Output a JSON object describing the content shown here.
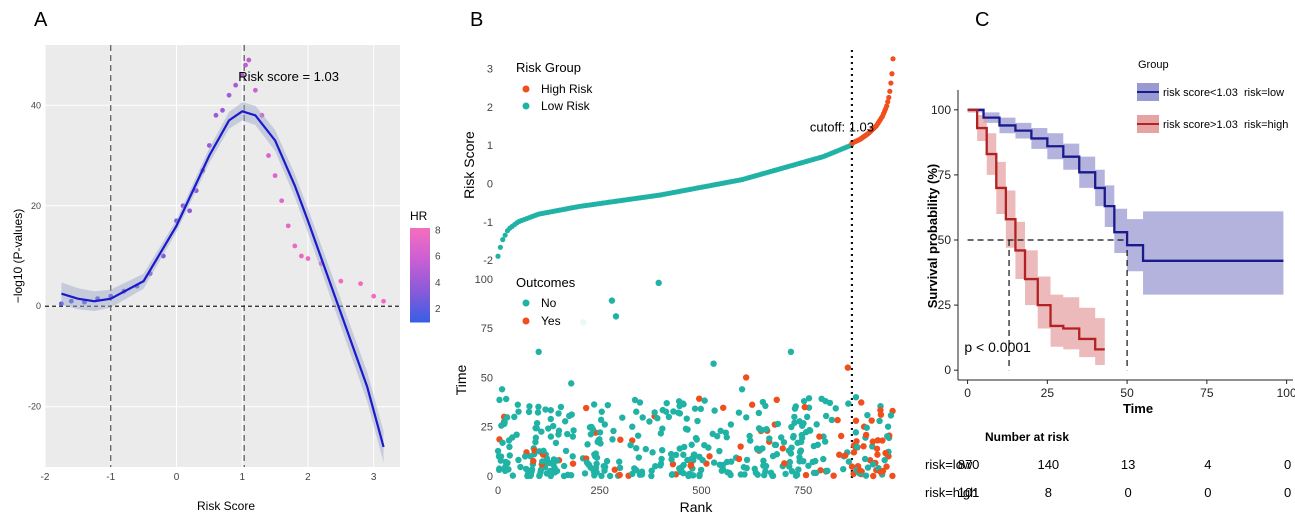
{
  "figure": {
    "panel_labels": [
      "A",
      "B",
      "C"
    ]
  },
  "chart_data": [
    {
      "panel": "A",
      "type": "scatter",
      "xlabel": "Risk Score",
      "ylabel": "−log10 (P-values)",
      "xlim": [
        -2,
        3.4
      ],
      "ylim": [
        -32,
        52
      ],
      "xticks": [
        -2,
        -1,
        0,
        1,
        2,
        3
      ],
      "yticks": [
        -20,
        0,
        20,
        40
      ],
      "grid": true,
      "annotation": "Risk score = 1.03",
      "vlines": [
        -1,
        1.03
      ],
      "hline": 0,
      "colorbar": {
        "title": "HR",
        "ticks": [
          2,
          4,
          6,
          8
        ],
        "range": [
          1,
          8.2
        ],
        "colors": [
          "#3a5fe5",
          "#8a5ad8",
          "#c95fd4",
          "#f36dbf"
        ]
      },
      "points": [
        {
          "x": -1.75,
          "y": 0.5,
          "hr": 1.8
        },
        {
          "x": -1.6,
          "y": 1.0,
          "hr": 1.8
        },
        {
          "x": -1.4,
          "y": 0.8,
          "hr": 2.0
        },
        {
          "x": -1.2,
          "y": 1.5,
          "hr": 2.2
        },
        {
          "x": -1.0,
          "y": 2.0,
          "hr": 2.4
        },
        {
          "x": -0.8,
          "y": 3.0,
          "hr": 2.6
        },
        {
          "x": -0.6,
          "y": 4.0,
          "hr": 2.8
        },
        {
          "x": -0.4,
          "y": 6.5,
          "hr": 3.0
        },
        {
          "x": -0.2,
          "y": 10.0,
          "hr": 3.2
        },
        {
          "x": 0.0,
          "y": 17.0,
          "hr": 3.3
        },
        {
          "x": 0.1,
          "y": 20.0,
          "hr": 3.4
        },
        {
          "x": 0.2,
          "y": 19.0,
          "hr": 3.5
        },
        {
          "x": 0.3,
          "y": 23.0,
          "hr": 3.6
        },
        {
          "x": 0.4,
          "y": 27.0,
          "hr": 3.7
        },
        {
          "x": 0.5,
          "y": 32.0,
          "hr": 3.9
        },
        {
          "x": 0.6,
          "y": 38.0,
          "hr": 4.0
        },
        {
          "x": 0.7,
          "y": 39.0,
          "hr": 4.1
        },
        {
          "x": 0.8,
          "y": 42.0,
          "hr": 4.3
        },
        {
          "x": 0.9,
          "y": 44.0,
          "hr": 4.5
        },
        {
          "x": 1.0,
          "y": 46.0,
          "hr": 4.8
        },
        {
          "x": 1.05,
          "y": 48.0,
          "hr": 5.2
        },
        {
          "x": 1.1,
          "y": 49.0,
          "hr": 5.5
        },
        {
          "x": 1.2,
          "y": 43.0,
          "hr": 6.0
        },
        {
          "x": 1.3,
          "y": 38.0,
          "hr": 6.4
        },
        {
          "x": 1.4,
          "y": 30.0,
          "hr": 6.7
        },
        {
          "x": 1.5,
          "y": 26.0,
          "hr": 7.0
        },
        {
          "x": 1.6,
          "y": 21.0,
          "hr": 7.2
        },
        {
          "x": 1.7,
          "y": 16.0,
          "hr": 7.4
        },
        {
          "x": 1.8,
          "y": 12.0,
          "hr": 7.6
        },
        {
          "x": 1.9,
          "y": 10.0,
          "hr": 7.7
        },
        {
          "x": 2.0,
          "y": 9.5,
          "hr": 7.8
        },
        {
          "x": 2.2,
          "y": 8.5,
          "hr": 7.9
        },
        {
          "x": 2.5,
          "y": 5.0,
          "hr": 8.0
        },
        {
          "x": 2.8,
          "y": 4.5,
          "hr": 8.0
        },
        {
          "x": 3.0,
          "y": 2.0,
          "hr": 8.0
        },
        {
          "x": 3.15,
          "y": 1.0,
          "hr": 8.0
        }
      ],
      "fit": {
        "x": [
          -1.75,
          -1.5,
          -1.25,
          -1.0,
          -0.5,
          0.0,
          0.5,
          0.8,
          1.0,
          1.2,
          1.5,
          1.8,
          2.0,
          2.3,
          2.6,
          2.9,
          3.15
        ],
        "y": [
          2.5,
          1.5,
          1.0,
          1.5,
          5.0,
          16.0,
          30.0,
          37.0,
          38.8,
          38.0,
          33.0,
          24.0,
          17.0,
          6.0,
          -5.0,
          -16.0,
          -28.0
        ]
      }
    },
    {
      "panel": "B-top",
      "type": "scatter",
      "ylabel": "Risk Score",
      "xlim": [
        0,
        971
      ],
      "ylim": [
        -2.05,
        3.35
      ],
      "yticks": [
        -2,
        -1,
        0,
        1,
        2,
        3
      ],
      "cutoff_rank": 870,
      "cutoff_label": "cutoff: 1.03",
      "legend": {
        "title": "Risk Group",
        "entries": [
          "High Risk",
          "Low Risk"
        ]
      },
      "series": [
        {
          "name": "Low Risk",
          "color": "#20b2a5",
          "x": [
            0,
            10,
            25,
            50,
            100,
            200,
            300,
            400,
            500,
            600,
            700,
            800,
            869
          ],
          "y": [
            -1.9,
            -1.5,
            -1.2,
            -1.0,
            -0.8,
            -0.6,
            -0.45,
            -0.3,
            -0.1,
            0.1,
            0.4,
            0.7,
            1.0
          ]
        },
        {
          "name": "High Risk",
          "color": "#f04e1c",
          "x": [
            870,
            890,
            910,
            930,
            945,
            955,
            962,
            968,
            971
          ],
          "y": [
            1.05,
            1.15,
            1.3,
            1.5,
            1.75,
            2.0,
            2.3,
            2.8,
            3.25
          ]
        }
      ]
    },
    {
      "panel": "B-bottom",
      "type": "scatter",
      "xlabel": "Rank",
      "ylabel": "Time",
      "xlim": [
        0,
        971
      ],
      "ylim": [
        0,
        102
      ],
      "xticks": [
        0,
        250,
        500,
        750
      ],
      "yticks": [
        0,
        25,
        50,
        75,
        100
      ],
      "legend": {
        "title": "Outcomes",
        "entries": [
          "No",
          "Yes"
        ]
      },
      "series": [
        {
          "name": "No",
          "color": "#20b2a5",
          "x": [
            10,
            40,
            80,
            100,
            130,
            180,
            210,
            260,
            280,
            290,
            330,
            380,
            395,
            420,
            480,
            530,
            560,
            600,
            650,
            700,
            720,
            760,
            800,
            850,
            880,
            920
          ],
          "y": [
            44,
            30,
            10,
            63,
            20,
            47,
            78,
            5,
            89,
            81,
            25,
            12,
            98,
            30,
            8,
            57,
            22,
            44,
            14,
            5,
            63,
            30,
            20,
            10,
            40,
            15
          ]
        },
        {
          "name": "Yes",
          "color": "#f04e1c",
          "x": [
            15,
            70,
            150,
            240,
            330,
            430,
            520,
            610,
            700,
            790,
            860,
            875,
            885,
            900,
            915,
            930,
            945,
            960,
            970
          ],
          "y": [
            30,
            12,
            8,
            22,
            18,
            6,
            10,
            50,
            14,
            20,
            55,
            12,
            5,
            25,
            8,
            3,
            18,
            10,
            33
          ]
        }
      ]
    },
    {
      "panel": "C",
      "type": "line",
      "xlabel": "Time",
      "ylabel": "Survival probability (%)",
      "xlim": [
        -3,
        102
      ],
      "ylim": [
        -3,
        103
      ],
      "xticks": [
        0,
        25,
        50,
        75,
        100
      ],
      "yticks": [
        0,
        25,
        50,
        75,
        100
      ],
      "pvalue": "p < 0.0001",
      "median_line": {
        "y": 50,
        "x_low": 50,
        "x_high": 13
      },
      "legend": {
        "title": "Group",
        "entries": [
          "risk score<1.03  risk=low",
          "risk score>1.03  risk=high"
        ]
      },
      "series": [
        {
          "name": "risk score<1.03  risk=low",
          "color": "#1a1a8c",
          "band": "#9a9ad2",
          "x": [
            0,
            5,
            10,
            15,
            20,
            25,
            30,
            35,
            40,
            43,
            46,
            50,
            55,
            99
          ],
          "y": [
            100,
            97,
            94,
            92,
            89,
            86,
            82,
            76,
            70,
            63,
            53,
            48,
            42,
            42
          ],
          "lo": [
            99,
            95,
            91,
            89,
            85,
            81,
            77,
            70,
            63,
            55,
            45,
            38,
            29,
            29
          ],
          "hi": [
            100,
            99,
            97,
            95,
            93,
            91,
            87,
            82,
            77,
            71,
            62,
            58,
            61,
            61
          ]
        },
        {
          "name": "risk score>1.03  risk=high",
          "color": "#b22222",
          "band": "#e6a3a3",
          "x": [
            0,
            3,
            6,
            9,
            12,
            15,
            18,
            22,
            26,
            30,
            35,
            40,
            43
          ],
          "y": [
            100,
            93,
            83,
            70,
            58,
            46,
            35,
            25,
            17,
            16,
            12,
            8,
            8
          ],
          "lo": [
            99,
            88,
            75,
            60,
            47,
            35,
            25,
            16,
            9,
            8,
            5,
            2,
            2
          ],
          "hi": [
            100,
            98,
            91,
            80,
            69,
            57,
            46,
            36,
            29,
            28,
            24,
            20,
            20
          ]
        }
      ],
      "risk_table": {
        "title": "Number at risk",
        "times": [
          0,
          25,
          50,
          75,
          100
        ],
        "rows": [
          {
            "label": "risk=low",
            "values": [
              "870",
              "140",
              "13",
              "4",
              "0"
            ]
          },
          {
            "label": "risk=high",
            "values": [
              "101",
              "8",
              "0",
              "0",
              "0"
            ]
          }
        ]
      }
    }
  ]
}
